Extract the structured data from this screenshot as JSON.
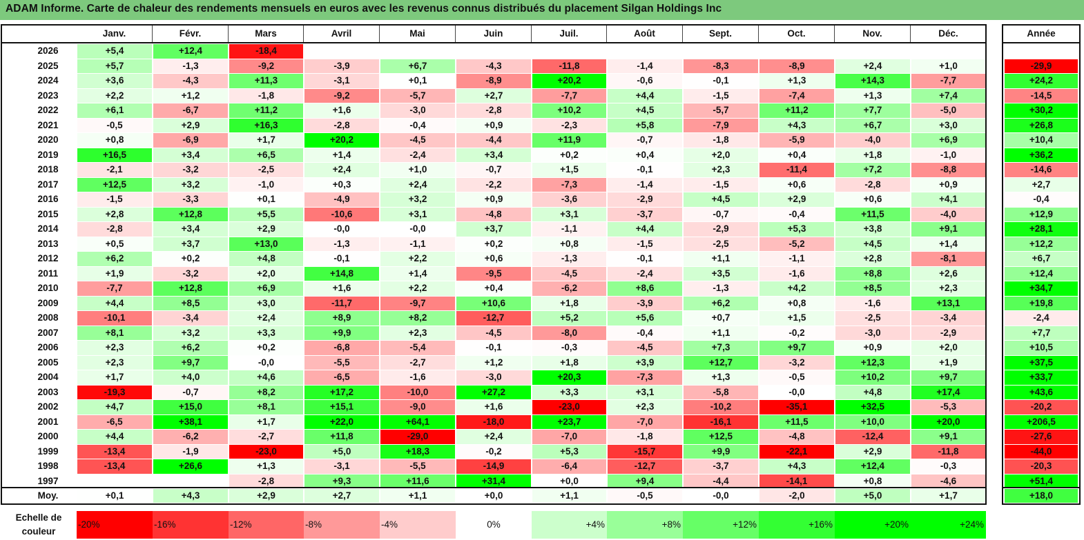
{
  "title": "ADAM Informe. Carte de chaleur des rendements mensuels en euros avec les revenus connus distribués du placement Silgan Holdings Inc",
  "chart_data": {
    "type": "heatmap",
    "columns": [
      "Janv.",
      "Févr.",
      "Mars",
      "Avril",
      "Mai",
      "Juin",
      "Juil.",
      "Août",
      "Sept.",
      "Oct.",
      "Nov.",
      "Déc."
    ],
    "year_column": "Année",
    "rows": [
      {
        "label": "2026",
        "months": [
          "+5,4",
          "+12,4",
          "-18,4",
          "",
          "",
          "",
          "",
          "",
          "",
          "",
          "",
          ""
        ],
        "year": ""
      },
      {
        "label": "2025",
        "months": [
          "+5,7",
          "-1,3",
          "-9,2",
          "-3,9",
          "+6,7",
          "-4,3",
          "-11,8",
          "-1,4",
          "-8,3",
          "-8,9",
          "+2,4",
          "+1,0"
        ],
        "year": "-29,9"
      },
      {
        "label": "2024",
        "months": [
          "+3,6",
          "-4,3",
          "+11,3",
          "-3,1",
          "+0,1",
          "-8,9",
          "+20,2",
          "-0,6",
          "-0,1",
          "+1,3",
          "+14,3",
          "-7,7"
        ],
        "year": "+24,2"
      },
      {
        "label": "2023",
        "months": [
          "+2,2",
          "+1,2",
          "-1,8",
          "-9,2",
          "-5,7",
          "+2,7",
          "-7,7",
          "+4,4",
          "-1,5",
          "-7,4",
          "+1,3",
          "+7,4"
        ],
        "year": "-14,5"
      },
      {
        "label": "2022",
        "months": [
          "+6,1",
          "-6,7",
          "+11,2",
          "+1,6",
          "-3,0",
          "-2,8",
          "+10,2",
          "+4,5",
          "-5,7",
          "+11,2",
          "+7,7",
          "-5,0"
        ],
        "year": "+30,2"
      },
      {
        "label": "2021",
        "months": [
          "-0,5",
          "+2,9",
          "+16,3",
          "-2,8",
          "-0,4",
          "+0,9",
          "-2,3",
          "+5,8",
          "-7,9",
          "+4,3",
          "+6,7",
          "+3,0"
        ],
        "year": "+26,8"
      },
      {
        "label": "2020",
        "months": [
          "+0,8",
          "-6,9",
          "+1,7",
          "+20,2",
          "-4,5",
          "-4,4",
          "+11,9",
          "-0,7",
          "-1,8",
          "-5,9",
          "-4,0",
          "+6,9"
        ],
        "year": "+10,4"
      },
      {
        "label": "2019",
        "months": [
          "+16,5",
          "+3,4",
          "+6,5",
          "+1,4",
          "-2,4",
          "+3,4",
          "+0,2",
          "+0,4",
          "+2,0",
          "+0,4",
          "+1,8",
          "-1,0"
        ],
        "year": "+36,2"
      },
      {
        "label": "2018",
        "months": [
          "-2,1",
          "-3,2",
          "-2,5",
          "+2,4",
          "+1,0",
          "-0,7",
          "+1,5",
          "-0,1",
          "+2,3",
          "-11,4",
          "+7,2",
          "-8,8"
        ],
        "year": "-14,6"
      },
      {
        "label": "2017",
        "months": [
          "+12,5",
          "+3,2",
          "-1,0",
          "+0,3",
          "+2,4",
          "-2,2",
          "-7,3",
          "-1,4",
          "-1,5",
          "+0,6",
          "-2,8",
          "+0,9"
        ],
        "year": "+2,7"
      },
      {
        "label": "2016",
        "months": [
          "-1,5",
          "-3,3",
          "+0,1",
          "-4,9",
          "+3,2",
          "+0,9",
          "-3,6",
          "-2,9",
          "+4,5",
          "+2,9",
          "+0,6",
          "+4,1"
        ],
        "year": "-0,4"
      },
      {
        "label": "2015",
        "months": [
          "+2,8",
          "+12,8",
          "+5,5",
          "-10,6",
          "+3,1",
          "-4,8",
          "+3,1",
          "-3,7",
          "-0,7",
          "-0,4",
          "+11,5",
          "-4,0"
        ],
        "year": "+12,9"
      },
      {
        "label": "2014",
        "months": [
          "-2,8",
          "+3,4",
          "+2,9",
          "-0,0",
          "-0,0",
          "+3,7",
          "-1,1",
          "+4,4",
          "-2,9",
          "+5,3",
          "+3,8",
          "+9,1"
        ],
        "year": "+28,1"
      },
      {
        "label": "2013",
        "months": [
          "+0,5",
          "+3,7",
          "+13,0",
          "-1,3",
          "-1,1",
          "+0,2",
          "+0,8",
          "-1,5",
          "-2,5",
          "-5,2",
          "+4,5",
          "+1,4"
        ],
        "year": "+12,2"
      },
      {
        "label": "2012",
        "months": [
          "+6,2",
          "+0,2",
          "+4,8",
          "-0,1",
          "+2,2",
          "+0,6",
          "-1,3",
          "-0,1",
          "+1,1",
          "-1,1",
          "+2,8",
          "-8,1"
        ],
        "year": "+6,7"
      },
      {
        "label": "2011",
        "months": [
          "+1,9",
          "-3,2",
          "+2,0",
          "+14,8",
          "+1,4",
          "-9,5",
          "-4,5",
          "-2,4",
          "+3,5",
          "-1,6",
          "+8,8",
          "+2,6"
        ],
        "year": "+12,4"
      },
      {
        "label": "2010",
        "months": [
          "-7,7",
          "+12,8",
          "+6,9",
          "+1,6",
          "+2,2",
          "+0,4",
          "-6,2",
          "+8,6",
          "-1,3",
          "+4,2",
          "+8,5",
          "+2,3"
        ],
        "year": "+34,7"
      },
      {
        "label": "2009",
        "months": [
          "+4,4",
          "+8,5",
          "+3,0",
          "-11,7",
          "-9,7",
          "+10,6",
          "+1,8",
          "-3,9",
          "+6,2",
          "+0,8",
          "-1,6",
          "+13,1"
        ],
        "year": "+19,8"
      },
      {
        "label": "2008",
        "months": [
          "-10,1",
          "-3,4",
          "+2,4",
          "+8,9",
          "+8,2",
          "-12,7",
          "+5,2",
          "+5,6",
          "+0,7",
          "+1,5",
          "-2,5",
          "-3,4"
        ],
        "year": "-2,4"
      },
      {
        "label": "2007",
        "months": [
          "+8,1",
          "+3,2",
          "+3,3",
          "+9,9",
          "+2,3",
          "-4,5",
          "-8,0",
          "-0,4",
          "+1,1",
          "-0,2",
          "-3,0",
          "-2,9"
        ],
        "year": "+7,7"
      },
      {
        "label": "2006",
        "months": [
          "+2,3",
          "+6,2",
          "+0,2",
          "-6,8",
          "-5,4",
          "-0,1",
          "-0,3",
          "-4,5",
          "+7,3",
          "+9,7",
          "+0,9",
          "+2,0"
        ],
        "year": "+10,5"
      },
      {
        "label": "2005",
        "months": [
          "+2,3",
          "+9,7",
          "-0,0",
          "-5,5",
          "-2,7",
          "+1,2",
          "+1,8",
          "+3,9",
          "+12,7",
          "-3,2",
          "+12,3",
          "+1,9"
        ],
        "year": "+37,5"
      },
      {
        "label": "2004",
        "months": [
          "+1,7",
          "+4,0",
          "+4,6",
          "-6,5",
          "-1,6",
          "-3,0",
          "+20,3",
          "-7,3",
          "+1,3",
          "-0,5",
          "+10,2",
          "+9,7"
        ],
        "year": "+33,7"
      },
      {
        "label": "2003",
        "months": [
          "-19,3",
          "-0,7",
          "+8,2",
          "+17,2",
          "-10,0",
          "+27,2",
          "+3,3",
          "+3,1",
          "-5,8",
          "-0,0",
          "+4,8",
          "+17,4"
        ],
        "year": "+43,6"
      },
      {
        "label": "2002",
        "months": [
          "+4,7",
          "+15,0",
          "+8,1",
          "+15,1",
          "-9,0",
          "+1,6",
          "-23,0",
          "+2,3",
          "-10,2",
          "-35,1",
          "+32,5",
          "-5,3"
        ],
        "year": "-20,2"
      },
      {
        "label": "2001",
        "months": [
          "-6,5",
          "+38,1",
          "+1,7",
          "+22,0",
          "+64,1",
          "-18,0",
          "+23,7",
          "-7,0",
          "-16,1",
          "+11,5",
          "+10,0",
          "+20,0"
        ],
        "year": "+206,5"
      },
      {
        "label": "2000",
        "months": [
          "+4,4",
          "-6,2",
          "-2,7",
          "+11,8",
          "-29,0",
          "+2,4",
          "-7,0",
          "-1,8",
          "+12,5",
          "-4,8",
          "-12,4",
          "+9,1"
        ],
        "year": "-27,6"
      },
      {
        "label": "1999",
        "months": [
          "-13,4",
          "-1,9",
          "-23,0",
          "+5,0",
          "+18,3",
          "-0,2",
          "+5,3",
          "-15,7",
          "+9,9",
          "-22,1",
          "+2,9",
          "-11,8"
        ],
        "year": "-44,0"
      },
      {
        "label": "1998",
        "months": [
          "-13,4",
          "+26,6",
          "+1,3",
          "-3,1",
          "-5,5",
          "-14,9",
          "-6,4",
          "-12,7",
          "-3,7",
          "+4,3",
          "+12,4",
          "-0,3"
        ],
        "year": "-20,3"
      },
      {
        "label": "1997",
        "months": [
          "",
          "",
          "-2,8",
          "+9,3",
          "+11,6",
          "+31,4",
          "+0,0",
          "+9,4",
          "-4,4",
          "-14,1",
          "+0,8",
          "-4,6"
        ],
        "year": "+51,4"
      }
    ],
    "average": {
      "label": "Moy.",
      "months": [
        "+0,1",
        "+4,3",
        "+2,9",
        "+2,7",
        "+1,1",
        "+0,0",
        "+1,1",
        "-0,5",
        "-0,0",
        "-2,0",
        "+5,0",
        "+1,7"
      ],
      "year": "+18,0"
    },
    "color_scale": {
      "label": "Echelle de couleur",
      "stops": [
        "-20%",
        "-16%",
        "-12%",
        "-8%",
        "-4%",
        "0%",
        "+4%",
        "+8%",
        "+12%",
        "+16%",
        "+20%",
        "+24%"
      ],
      "negative_color": "#ff0000",
      "positive_color": "#00ff00",
      "neutral_color": "#ffffff"
    }
  }
}
